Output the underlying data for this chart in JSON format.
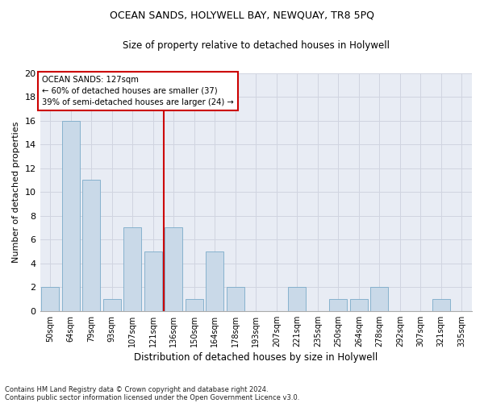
{
  "title1": "OCEAN SANDS, HOLYWELL BAY, NEWQUAY, TR8 5PQ",
  "title2": "Size of property relative to detached houses in Holywell",
  "xlabel": "Distribution of detached houses by size in Holywell",
  "ylabel": "Number of detached properties",
  "categories": [
    "50sqm",
    "64sqm",
    "79sqm",
    "93sqm",
    "107sqm",
    "121sqm",
    "136sqm",
    "150sqm",
    "164sqm",
    "178sqm",
    "193sqm",
    "207sqm",
    "221sqm",
    "235sqm",
    "250sqm",
    "264sqm",
    "278sqm",
    "292sqm",
    "307sqm",
    "321sqm",
    "335sqm"
  ],
  "values": [
    2,
    16,
    11,
    1,
    7,
    5,
    7,
    1,
    5,
    2,
    0,
    0,
    2,
    0,
    1,
    1,
    2,
    0,
    0,
    1,
    0
  ],
  "bar_color": "#c9d9e8",
  "bar_edge_color": "#7aaac8",
  "grid_color": "#d0d4e0",
  "vline_x": 5.5,
  "vline_color": "#cc0000",
  "annotation_title": "OCEAN SANDS: 127sqm",
  "annotation_line1": "← 60% of detached houses are smaller (37)",
  "annotation_line2": "39% of semi-detached houses are larger (24) →",
  "annotation_box_facecolor": "#ffffff",
  "annotation_box_edgecolor": "#cc0000",
  "footnote1": "Contains HM Land Registry data © Crown copyright and database right 2024.",
  "footnote2": "Contains public sector information licensed under the Open Government Licence v3.0.",
  "ylim": [
    0,
    20
  ],
  "yticks": [
    0,
    2,
    4,
    6,
    8,
    10,
    12,
    14,
    16,
    18,
    20
  ],
  "fig_facecolor": "#ffffff",
  "ax_facecolor": "#e8ecf4"
}
